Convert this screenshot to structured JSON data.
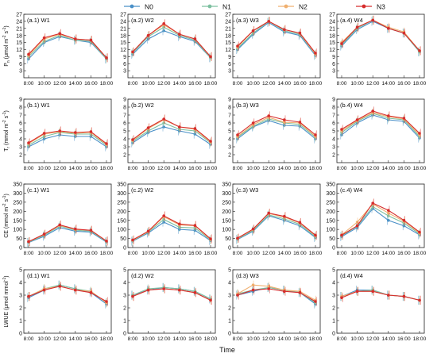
{
  "figure": {
    "x_title": "Time",
    "legend": [
      {
        "name": "N0",
        "color": "#4a90c8"
      },
      {
        "name": "N1",
        "color": "#7ec0a0"
      },
      {
        "name": "N2",
        "color": "#f0b070"
      },
      {
        "name": "N3",
        "color": "#d62d2d"
      }
    ]
  },
  "chart_data": [
    {
      "type": "line",
      "title": "(a.1) W1",
      "ylabel": "P_n (μmol m^-2 s^-1)",
      "ylim": [
        0,
        27
      ],
      "yticks": [
        3,
        6,
        9,
        12,
        15,
        18,
        21,
        24,
        27
      ],
      "categories": [
        "8:00",
        "10:00",
        "12:00",
        "14:00",
        "16:00",
        "18:00"
      ],
      "series": [
        {
          "name": "N0",
          "values": [
            8.0,
            15.0,
            17.5,
            16.0,
            15.0,
            8.0
          ]
        },
        {
          "name": "N1",
          "values": [
            9.0,
            15.5,
            18.0,
            16.0,
            15.5,
            8.0
          ]
        },
        {
          "name": "N2",
          "values": [
            9.5,
            16.5,
            18.5,
            16.5,
            16.0,
            8.5
          ]
        },
        {
          "name": "N3",
          "values": [
            10.0,
            17.0,
            18.8,
            16.5,
            16.0,
            8.5
          ]
        }
      ]
    },
    {
      "type": "line",
      "title": "(a.2) W2",
      "ylim": [
        0,
        27
      ],
      "yticks": [
        3,
        6,
        9,
        12,
        15,
        18,
        21,
        24,
        27
      ],
      "categories": [
        "8:00",
        "10:00",
        "12:00",
        "14:00",
        "16:00",
        "18:00"
      ],
      "series": [
        {
          "name": "N0",
          "values": [
            10.0,
            16.5,
            20.0,
            17.5,
            15.5,
            8.5
          ]
        },
        {
          "name": "N1",
          "values": [
            10.5,
            17.5,
            21.5,
            18.0,
            16.0,
            8.5
          ]
        },
        {
          "name": "N2",
          "values": [
            11.0,
            18.0,
            22.5,
            18.5,
            16.5,
            9.0
          ]
        },
        {
          "name": "N3",
          "values": [
            11.0,
            18.0,
            23.0,
            18.5,
            16.5,
            9.0
          ]
        }
      ]
    },
    {
      "type": "line",
      "title": "(a.3) W3",
      "ylim": [
        0,
        27
      ],
      "yticks": [
        3,
        6,
        9,
        12,
        15,
        18,
        21,
        24,
        27
      ],
      "categories": [
        "8:00",
        "10:00",
        "12:00",
        "14:00",
        "16:00",
        "18:00"
      ],
      "series": [
        {
          "name": "N0",
          "values": [
            12.0,
            18.5,
            23.5,
            19.5,
            18.0,
            9.5
          ]
        },
        {
          "name": "N1",
          "values": [
            12.5,
            19.0,
            24.0,
            20.0,
            18.5,
            10.0
          ]
        },
        {
          "name": "N2",
          "values": [
            13.0,
            20.0,
            24.0,
            20.5,
            19.0,
            10.0
          ]
        },
        {
          "name": "N3",
          "values": [
            13.5,
            20.0,
            24.0,
            20.5,
            19.0,
            10.5
          ]
        }
      ]
    },
    {
      "type": "line",
      "title": "(a.4) W4",
      "ylim": [
        0,
        27
      ],
      "yticks": [
        3,
        6,
        9,
        12,
        15,
        18,
        21,
        24,
        27
      ],
      "categories": [
        "8:00",
        "10:00",
        "12:00",
        "14:00",
        "16:00",
        "18:00"
      ],
      "series": [
        {
          "name": "N0",
          "values": [
            13.5,
            20.5,
            24.0,
            21.0,
            19.0,
            11.0
          ]
        },
        {
          "name": "N1",
          "values": [
            14.0,
            21.0,
            24.5,
            21.0,
            19.0,
            11.0
          ]
        },
        {
          "name": "N2",
          "values": [
            15.0,
            21.5,
            24.5,
            21.5,
            19.5,
            11.5
          ]
        },
        {
          "name": "N3",
          "values": [
            14.5,
            21.5,
            24.5,
            21.0,
            19.0,
            11.5
          ]
        }
      ]
    },
    {
      "type": "line",
      "title": "(b.1) W1",
      "ylabel": "T_r (mmol m^-2 s^-1)",
      "ylim": [
        1,
        9
      ],
      "yticks": [
        2,
        3,
        4,
        5,
        6,
        7,
        8,
        9
      ],
      "categories": [
        "8:00",
        "10:00",
        "12:00",
        "14:00",
        "16:00",
        "18:00"
      ],
      "series": [
        {
          "name": "N0",
          "values": [
            3.0,
            4.0,
            4.5,
            4.3,
            4.3,
            3.0
          ]
        },
        {
          "name": "N1",
          "values": [
            3.2,
            4.3,
            4.8,
            4.6,
            4.6,
            3.2
          ]
        },
        {
          "name": "N2",
          "values": [
            3.4,
            4.6,
            4.9,
            4.7,
            4.8,
            3.3
          ]
        },
        {
          "name": "N3",
          "values": [
            3.5,
            4.7,
            5.0,
            4.8,
            4.9,
            3.4
          ]
        }
      ]
    },
    {
      "type": "line",
      "title": "(b.2) W2",
      "ylim": [
        1,
        9
      ],
      "yticks": [
        2,
        3,
        4,
        5,
        6,
        7,
        8,
        9
      ],
      "categories": [
        "8:00",
        "10:00",
        "12:00",
        "14:00",
        "16:00",
        "18:00"
      ],
      "series": [
        {
          "name": "N0",
          "values": [
            3.5,
            4.8,
            5.5,
            5.0,
            4.6,
            3.3
          ]
        },
        {
          "name": "N1",
          "values": [
            3.7,
            5.0,
            6.0,
            5.2,
            5.0,
            3.5
          ]
        },
        {
          "name": "N2",
          "values": [
            3.8,
            5.3,
            6.4,
            5.5,
            5.2,
            3.6
          ]
        },
        {
          "name": "N3",
          "values": [
            3.9,
            5.4,
            6.5,
            5.5,
            5.3,
            3.7
          ]
        }
      ]
    },
    {
      "type": "line",
      "title": "(b.3) W3",
      "ylim": [
        1,
        9
      ],
      "yticks": [
        2,
        3,
        4,
        5,
        6,
        7,
        8,
        9
      ],
      "categories": [
        "8:00",
        "10:00",
        "12:00",
        "14:00",
        "16:00",
        "18:00"
      ],
      "series": [
        {
          "name": "N0",
          "values": [
            4.0,
            5.5,
            6.3,
            5.7,
            5.6,
            4.0
          ]
        },
        {
          "name": "N1",
          "values": [
            4.2,
            5.6,
            6.5,
            6.0,
            5.8,
            4.2
          ]
        },
        {
          "name": "N2",
          "values": [
            4.3,
            5.8,
            6.7,
            6.1,
            6.0,
            4.3
          ]
        },
        {
          "name": "N3",
          "values": [
            4.5,
            6.0,
            6.9,
            6.4,
            6.1,
            4.5
          ]
        }
      ]
    },
    {
      "type": "line",
      "title": "(b.4) W4",
      "ylim": [
        1,
        9
      ],
      "yticks": [
        2,
        3,
        4,
        5,
        6,
        7,
        8,
        9
      ],
      "categories": [
        "8:00",
        "10:00",
        "12:00",
        "14:00",
        "16:00",
        "18:00"
      ],
      "series": [
        {
          "name": "N0",
          "values": [
            4.5,
            6.0,
            7.0,
            6.4,
            6.2,
            4.1
          ]
        },
        {
          "name": "N1",
          "values": [
            4.8,
            6.2,
            7.2,
            6.6,
            6.4,
            4.3
          ]
        },
        {
          "name": "N2",
          "values": [
            5.0,
            6.3,
            7.3,
            6.8,
            6.5,
            4.5
          ]
        },
        {
          "name": "N3",
          "values": [
            5.2,
            6.4,
            7.5,
            6.9,
            6.6,
            4.7
          ]
        }
      ]
    },
    {
      "type": "line",
      "title": "(c.1) W1",
      "ylabel": "CE (mmol m^-2 s^-1)",
      "ylim": [
        0,
        350
      ],
      "yticks": [
        0,
        50,
        100,
        150,
        200,
        250,
        300,
        350
      ],
      "categories": [
        "8:00",
        "10:00",
        "12:00",
        "14:00",
        "16:00",
        "18:00"
      ],
      "series": [
        {
          "name": "N0",
          "values": [
            28,
            62,
            110,
            90,
            85,
            30
          ]
        },
        {
          "name": "N1",
          "values": [
            30,
            68,
            118,
            96,
            90,
            33
          ]
        },
        {
          "name": "N2",
          "values": [
            32,
            72,
            122,
            100,
            95,
            35
          ]
        },
        {
          "name": "N3",
          "values": [
            33,
            74,
            125,
            102,
            95,
            36
          ]
        }
      ]
    },
    {
      "type": "line",
      "title": "(c.2) W2",
      "ylim": [
        0,
        350
      ],
      "yticks": [
        0,
        50,
        100,
        150,
        200,
        250,
        300,
        350
      ],
      "categories": [
        "8:00",
        "10:00",
        "12:00",
        "14:00",
        "16:00",
        "18:00"
      ],
      "series": [
        {
          "name": "N0",
          "values": [
            35,
            80,
            140,
            100,
            95,
            38
          ]
        },
        {
          "name": "N1",
          "values": [
            38,
            85,
            155,
            112,
            108,
            42
          ]
        },
        {
          "name": "N2",
          "values": [
            40,
            88,
            170,
            125,
            120,
            45
          ]
        },
        {
          "name": "N3",
          "values": [
            42,
            90,
            175,
            130,
            122,
            48
          ]
        }
      ]
    },
    {
      "type": "line",
      "title": "(c.3) W3",
      "ylim": [
        0,
        350
      ],
      "yticks": [
        0,
        50,
        100,
        150,
        200,
        250,
        300,
        350
      ],
      "categories": [
        "8:00",
        "10:00",
        "12:00",
        "14:00",
        "16:00",
        "18:00"
      ],
      "series": [
        {
          "name": "N0",
          "values": [
            45,
            90,
            175,
            150,
            120,
            55
          ]
        },
        {
          "name": "N1",
          "values": [
            48,
            95,
            180,
            158,
            128,
            60
          ]
        },
        {
          "name": "N2",
          "values": [
            50,
            100,
            188,
            168,
            135,
            65
          ]
        },
        {
          "name": "N3",
          "values": [
            52,
            102,
            190,
            172,
            138,
            68
          ]
        }
      ]
    },
    {
      "type": "line",
      "title": "(c.4) W4",
      "ylim": [
        0,
        350
      ],
      "yticks": [
        0,
        50,
        100,
        150,
        200,
        250,
        300,
        350
      ],
      "categories": [
        "8:00",
        "10:00",
        "12:00",
        "14:00",
        "16:00",
        "18:00"
      ],
      "series": [
        {
          "name": "N0",
          "values": [
            60,
            110,
            215,
            150,
            120,
            70
          ]
        },
        {
          "name": "N1",
          "values": [
            65,
            118,
            225,
            175,
            135,
            75
          ]
        },
        {
          "name": "N2",
          "values": [
            70,
            140,
            240,
            190,
            145,
            80
          ]
        },
        {
          "name": "N3",
          "values": [
            68,
            120,
            245,
            205,
            150,
            85
          ]
        }
      ]
    },
    {
      "type": "line",
      "title": "(d.1) W1",
      "ylabel": "LWUE (μmol mmol^-1)",
      "ylim": [
        0,
        5
      ],
      "yticks": [
        0,
        1,
        2,
        3,
        4,
        5
      ],
      "categories": [
        "8:00",
        "10:00",
        "12:00",
        "14:00",
        "16:00",
        "18:00"
      ],
      "series": [
        {
          "name": "N0",
          "values": [
            2.8,
            3.4,
            3.8,
            3.5,
            3.2,
            2.3
          ]
        },
        {
          "name": "N1",
          "values": [
            2.9,
            3.5,
            3.8,
            3.5,
            3.3,
            2.4
          ]
        },
        {
          "name": "N2",
          "values": [
            2.9,
            3.5,
            3.7,
            3.4,
            3.3,
            2.4
          ]
        },
        {
          "name": "N3",
          "values": [
            2.9,
            3.4,
            3.7,
            3.4,
            3.2,
            2.5
          ]
        }
      ]
    },
    {
      "type": "line",
      "title": "(d.2) W2",
      "ylim": [
        0,
        5
      ],
      "yticks": [
        0,
        1,
        2,
        3,
        4,
        5
      ],
      "categories": [
        "8:00",
        "10:00",
        "12:00",
        "14:00",
        "16:00",
        "18:00"
      ],
      "series": [
        {
          "name": "N0",
          "values": [
            3.0,
            3.4,
            3.6,
            3.5,
            3.3,
            2.7
          ]
        },
        {
          "name": "N1",
          "values": [
            3.0,
            3.5,
            3.6,
            3.5,
            3.3,
            2.7
          ]
        },
        {
          "name": "N2",
          "values": [
            2.9,
            3.4,
            3.5,
            3.4,
            3.2,
            2.6
          ]
        },
        {
          "name": "N3",
          "values": [
            2.9,
            3.4,
            3.5,
            3.4,
            3.2,
            2.6
          ]
        }
      ]
    },
    {
      "type": "line",
      "title": "(d.3) W3",
      "ylim": [
        0,
        5
      ],
      "yticks": [
        0,
        1,
        2,
        3,
        4,
        5
      ],
      "categories": [
        "8:00",
        "10:00",
        "12:00",
        "14:00",
        "16:00",
        "18:00"
      ],
      "series": [
        {
          "name": "N0",
          "values": [
            3.0,
            3.3,
            3.6,
            3.4,
            3.2,
            2.3
          ]
        },
        {
          "name": "N1",
          "values": [
            3.1,
            3.4,
            3.6,
            3.4,
            3.2,
            2.4
          ]
        },
        {
          "name": "N2",
          "values": [
            3.1,
            3.8,
            3.7,
            3.4,
            3.3,
            2.6
          ]
        },
        {
          "name": "N3",
          "values": [
            3.0,
            3.4,
            3.5,
            3.3,
            3.2,
            2.5
          ]
        }
      ]
    },
    {
      "type": "line",
      "title": "(d.4) W4",
      "ylim": [
        0,
        5
      ],
      "yticks": [
        0,
        1,
        2,
        3,
        4,
        5
      ],
      "categories": [
        "8:00",
        "10:00",
        "12:00",
        "14:00",
        "16:00",
        "18:00"
      ],
      "series": [
        {
          "name": "N0",
          "values": [
            2.9,
            3.4,
            3.4,
            3.0,
            2.9,
            2.6
          ]
        },
        {
          "name": "N1",
          "values": [
            2.9,
            3.3,
            3.4,
            3.0,
            2.9,
            2.6
          ]
        },
        {
          "name": "N2",
          "values": [
            2.9,
            3.3,
            3.3,
            3.0,
            2.9,
            2.6
          ]
        },
        {
          "name": "N3",
          "values": [
            2.8,
            3.3,
            3.3,
            3.0,
            2.9,
            2.6
          ]
        }
      ]
    }
  ]
}
